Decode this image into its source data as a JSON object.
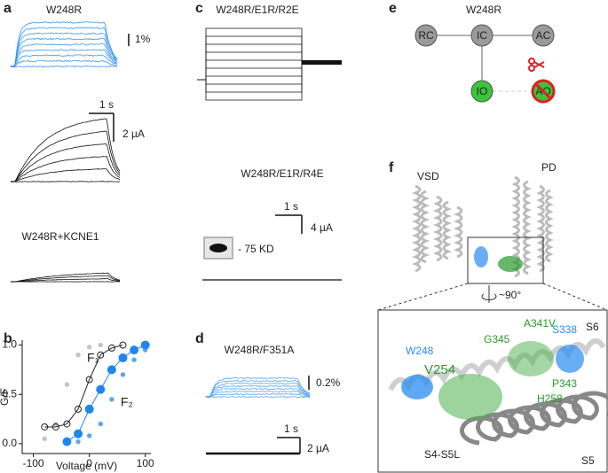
{
  "panels": {
    "a": {
      "label": "a",
      "title": "W248R",
      "fluor_scale": "1%",
      "time_scale": "1 s",
      "current_scale": "2 µA",
      "kcne1_title": "W248R+KCNE1"
    },
    "c": {
      "label": "c",
      "title": "W248R/E1R/R2E",
      "title2": "W248R/E1R/R4E",
      "time_scale": "1 s",
      "current_scale": "4 µA",
      "blot": "- 75 KD"
    },
    "d": {
      "label": "d",
      "title": "W248R/F351A",
      "fluor_scale": "0.2%",
      "time_scale": "1 s",
      "current_scale": "2 µA"
    },
    "e": {
      "label": "e",
      "title": "W248R",
      "nodes": [
        "RC",
        "IC",
        "AC",
        "IO",
        "AO"
      ]
    },
    "f": {
      "label": "f",
      "vsd": "VSD",
      "pd": "PD",
      "rotation": "~90°",
      "residues": {
        "w248": "W248",
        "v254": "V254",
        "g345": "G345",
        "a341v": "A341V",
        "s338": "S338",
        "p343": "P343",
        "h258": "H258"
      },
      "s4s5l": "S4-S5L",
      "s6": "S6",
      "s5": "S5"
    }
  },
  "chart_data": {
    "type": "scatter",
    "label": "b",
    "xlabel": "Voltage (mV)",
    "ylabel": "G/F",
    "xlim": [
      -120,
      110
    ],
    "ylim": [
      -0.1,
      1.05
    ],
    "xticks": [
      -100,
      0,
      100
    ],
    "yticks": [
      {
        "value": 0,
        "label": "0.0"
      },
      {
        "value": 0.5,
        "label": "0.5"
      },
      {
        "value": 1,
        "label": "1.0"
      }
    ],
    "series": [
      {
        "name": "F₁",
        "color": "#c4c4c4",
        "marker": "dots",
        "x": [
          -80,
          -60,
          -40,
          -20,
          0,
          20
        ],
        "values": [
          0.05,
          0.2,
          0.6,
          0.9,
          0.98,
          1.0
        ]
      },
      {
        "color": "#222222",
        "marker": "open",
        "x": [
          -80,
          -60,
          -40,
          -20,
          0,
          20,
          40,
          60
        ],
        "values": [
          0.17,
          0.17,
          0.2,
          0.35,
          0.65,
          0.9,
          0.97,
          1.0
        ]
      },
      {
        "name": "F₂",
        "color": "#5aa6f2",
        "marker": "dots",
        "x": [
          -20,
          0,
          20,
          40,
          60,
          80,
          100
        ],
        "values": [
          0.02,
          0.08,
          0.2,
          0.45,
          0.7,
          0.85,
          0.95
        ]
      },
      {
        "color": "#1f86f0",
        "marker": "filled",
        "x": [
          -40,
          -20,
          0,
          20,
          40,
          60,
          80,
          100
        ],
        "values": [
          0.02,
          0.1,
          0.35,
          0.55,
          0.75,
          0.87,
          0.95,
          1.0
        ]
      }
    ]
  }
}
